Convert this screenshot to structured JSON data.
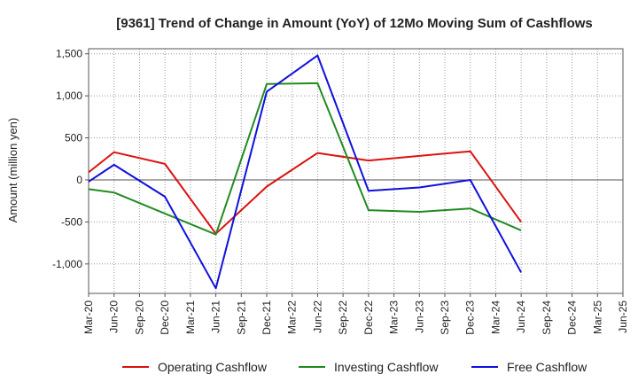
{
  "chart_data": {
    "type": "line",
    "title": "[9361]  Trend of Change in Amount (YoY) of 12Mo Moving Sum of Cashflows",
    "xlabel": "",
    "ylabel": "Amount (million yen)",
    "ylim": [
      -1350,
      1560
    ],
    "yticks": [
      1500,
      1000,
      500,
      0,
      -500,
      -1000
    ],
    "ytick_labels": [
      "1,500",
      "1,000",
      "500",
      "0",
      "-500",
      "-1,000"
    ],
    "grid": true,
    "legend_position": "bottom",
    "categories": [
      "Mar-20",
      "Jun-20",
      "Sep-20",
      "Dec-20",
      "Mar-21",
      "Jun-21",
      "Sep-21",
      "Dec-21",
      "Mar-22",
      "Jun-22",
      "Sep-22",
      "Dec-22",
      "Mar-23",
      "Jun-23",
      "Sep-23",
      "Dec-23",
      "Mar-24",
      "Jun-24",
      "Sep-24",
      "Dec-24",
      "Mar-25",
      "Jun-25"
    ],
    "series": [
      {
        "name": "Operating Cashflow",
        "color": "#dd1111",
        "values": [
          90,
          330,
          null,
          190,
          null,
          -640,
          null,
          -80,
          null,
          320,
          null,
          230,
          null,
          null,
          null,
          340,
          null,
          -500,
          null,
          null,
          null,
          null
        ]
      },
      {
        "name": "Investing Cashflow",
        "color": "#228b22",
        "values": [
          -110,
          -150,
          null,
          -400,
          null,
          -650,
          null,
          1140,
          null,
          1150,
          null,
          -360,
          null,
          -380,
          null,
          -340,
          null,
          -600,
          null,
          null,
          null,
          null
        ]
      },
      {
        "name": "Free Cashflow",
        "color": "#1010dd",
        "values": [
          -20,
          180,
          null,
          -200,
          null,
          -1290,
          null,
          1050,
          null,
          1480,
          null,
          -130,
          null,
          -90,
          null,
          0,
          null,
          -1100,
          null,
          null,
          null,
          null
        ]
      }
    ]
  }
}
